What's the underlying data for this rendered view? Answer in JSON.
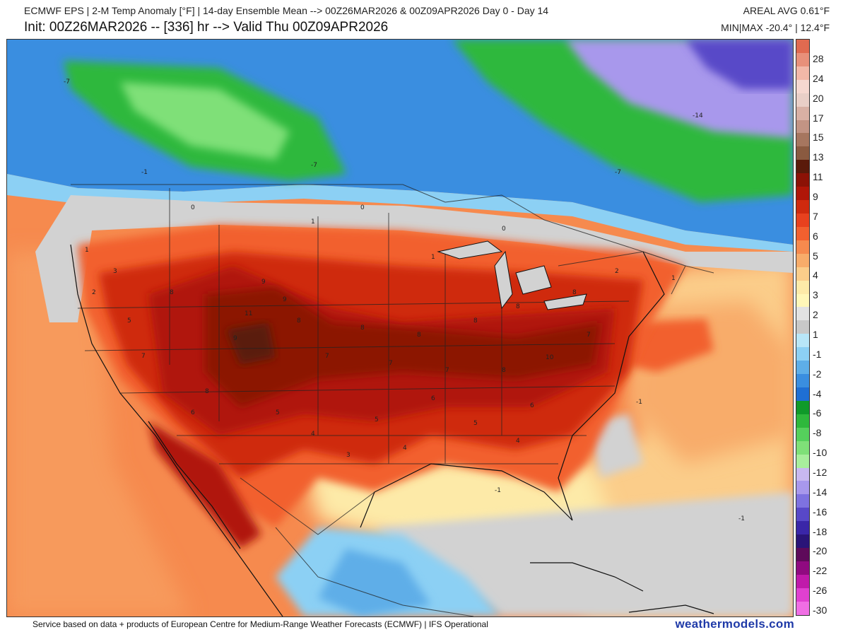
{
  "header": {
    "line1_left": "ECMWF EPS | 2-M Temp Anomaly [°F] | 14-day Ensemble Mean --> 00Z26MAR2026 & 00Z09APR2026   Day 0 - Day 14",
    "line1_right": "AREAL AVG 0.61°F",
    "line2_left": "Init: 00Z26MAR2026 -- [336] hr --> Valid Thu 00Z09APR2026",
    "line2_right": "MIN|MAX -20.4° | 12.4°F"
  },
  "legend": {
    "labels": [
      "28",
      "24",
      "20",
      "17",
      "15",
      "13",
      "11",
      "9",
      "7",
      "6",
      "5",
      "4",
      "3",
      "2",
      "1",
      "-1",
      "-2",
      "-4",
      "-6",
      "-8",
      "-10",
      "-12",
      "-14",
      "-16",
      "-18",
      "-20",
      "-22",
      "-26",
      "-30"
    ],
    "swatches": [
      "#e06a50",
      "#e8907a",
      "#f2b8a8",
      "#f6d8d0",
      "#e9cfc7",
      "#d8b0a4",
      "#c29484",
      "#a6765f",
      "#8a5a40",
      "#5a1a0a",
      "#8c1206",
      "#b01608",
      "#cf2a0e",
      "#e8411e",
      "#f2602f",
      "#f68a4e",
      "#f8ac6a",
      "#fbcd8a",
      "#fdeaa8",
      "#fff7b8",
      "#e2e2e2",
      "#c8c8c8",
      "#b8e6f8",
      "#8cd0f4",
      "#5eaee8",
      "#3a8ee0",
      "#1f6fd4",
      "#0f9a2a",
      "#2eb83c",
      "#55d05c",
      "#7fe078",
      "#a8ee9c",
      "#c8b8f0",
      "#a898ec",
      "#7e72e0",
      "#5848c8",
      "#3a26a8",
      "#2a1478",
      "#5e0a5a",
      "#900a80",
      "#c01aaa",
      "#e040d0",
      "#f06ee4"
    ]
  },
  "map_labels": {
    "contours_cold": [
      "-7",
      "-7",
      "-7",
      "-14",
      "-1",
      "-1",
      "-1",
      "-1"
    ],
    "anomaly_values": [
      "11",
      "10",
      "9",
      "9",
      "9",
      "8",
      "8",
      "8",
      "8",
      "8",
      "8",
      "8",
      "8",
      "8",
      "7",
      "7",
      "7",
      "7",
      "7",
      "6",
      "6",
      "6",
      "5",
      "5",
      "5",
      "5",
      "4",
      "4",
      "4",
      "3",
      "3",
      "2",
      "2",
      "1",
      "1",
      "1",
      "1",
      "0",
      "0",
      "0"
    ]
  },
  "footer": {
    "credit": "Service based on data + products of European Centre for Medium-Range Weather Forecasts (ECMWF) | IFS Operational",
    "brand": "weathermodels.com"
  },
  "colors": {
    "ocean_warm": "#f68a4e",
    "land_hot": "#8c1206",
    "cold_blue": "#3a8ee0",
    "cold_green": "#2eb83c",
    "cold_purple": "#7e72e0",
    "neutral": "#d2d2d2",
    "brand": "#1f3aa8"
  }
}
